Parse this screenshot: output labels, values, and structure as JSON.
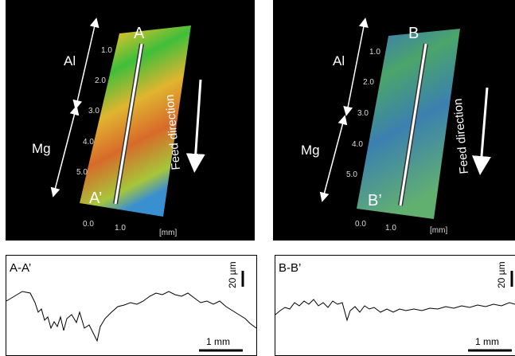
{
  "panels": [
    {
      "top_label": "A",
      "bottom_label": "A’",
      "upper_zone": "Al",
      "lower_zone": "Mg",
      "length_ticks": [
        "1.0",
        "2.0",
        "3.0",
        "4.0",
        "5.0"
      ],
      "width_ticks": [
        "0.0",
        "1.0"
      ],
      "unit": "[mm]",
      "feed": "Feed direction"
    },
    {
      "top_label": "B",
      "bottom_label": "B’",
      "upper_zone": "Al",
      "lower_zone": "Mg",
      "length_ticks": [
        "1.0",
        "2.0",
        "3.0",
        "4.0",
        "5.0"
      ],
      "width_ticks": [
        "0.0",
        "1.0"
      ],
      "unit": "[mm]",
      "feed": "Feed direction"
    }
  ],
  "profiles": [
    {
      "title": "A-A’",
      "height_scale": "20 µm",
      "length_scale": "1 mm"
    },
    {
      "title": "B-B’",
      "height_scale": "20 µm",
      "length_scale": "1 mm"
    }
  ]
}
